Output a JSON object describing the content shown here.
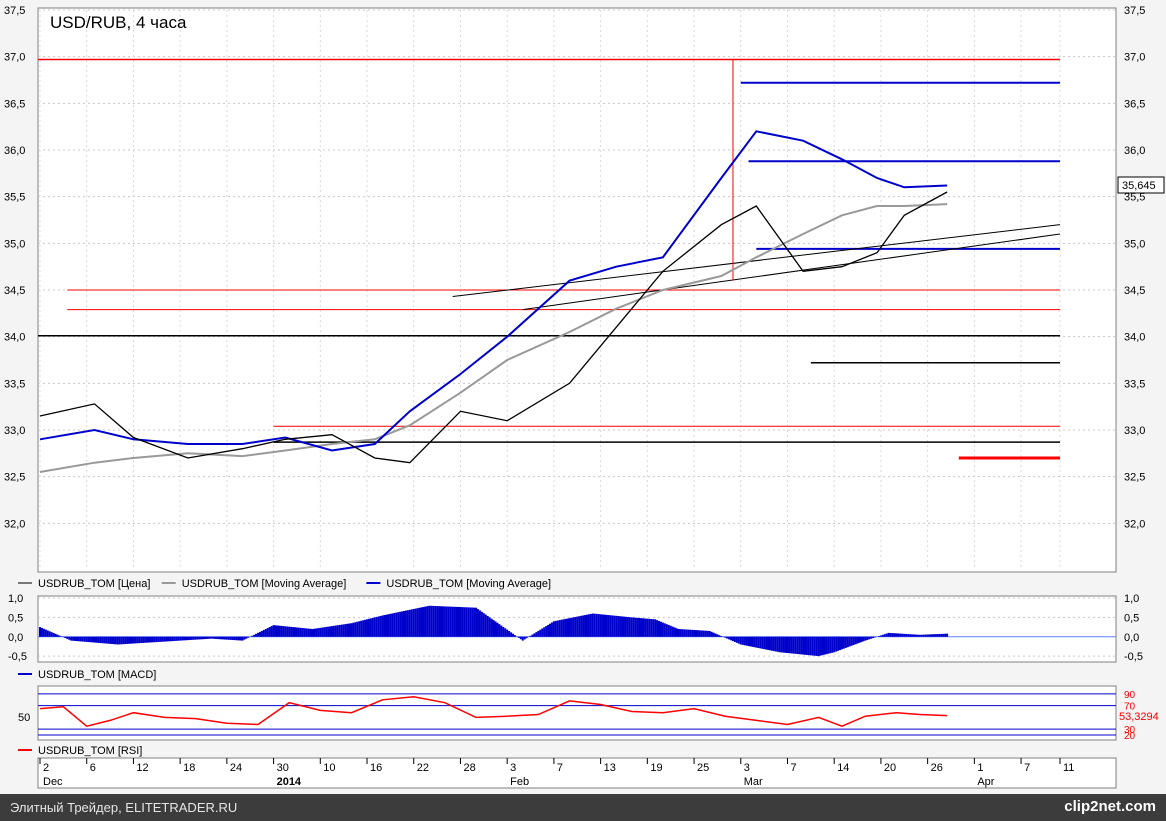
{
  "title": "USD/RUB, 4 часа",
  "colors": {
    "price": "#000000",
    "ma_fast": "#0000cc",
    "ma_slow": "#999999",
    "hline_red": "#ff0000",
    "hline_black": "#000000",
    "hline_blue": "#0000cc",
    "macd": "#0000cc",
    "rsi": "#ff0000"
  },
  "chart_data": [
    {
      "type": "line",
      "name": "main",
      "title": "USD/RUB, 4 часа",
      "ylim": [
        31.5,
        37.5
      ],
      "y_ticks": [
        "37,5",
        "37,0",
        "36,5",
        "36,0",
        "35,5",
        "35,0",
        "34,5",
        "34,0",
        "33,5",
        "33,0",
        "32,5",
        "32,0"
      ],
      "y_tick_values": [
        37.5,
        37.0,
        36.5,
        36.0,
        35.5,
        35.0,
        34.5,
        34.0,
        33.5,
        33.0,
        32.5,
        32.0
      ],
      "x": [
        0,
        14,
        24,
        38,
        52,
        63,
        75,
        86,
        95,
        108,
        120,
        136,
        148,
        160,
        175,
        184,
        196,
        206,
        215,
        222,
        233
      ],
      "price": [
        33.15,
        33.28,
        32.92,
        32.7,
        32.8,
        32.9,
        32.95,
        32.7,
        32.65,
        33.2,
        33.1,
        33.5,
        34.1,
        34.7,
        35.2,
        35.4,
        34.7,
        34.75,
        34.9,
        35.3,
        35.55
      ],
      "ma_slow": [
        32.55,
        32.65,
        32.7,
        32.75,
        32.72,
        32.78,
        32.85,
        32.9,
        33.05,
        33.4,
        33.75,
        34.05,
        34.3,
        34.5,
        34.65,
        34.85,
        35.1,
        35.3,
        35.4,
        35.4,
        35.42
      ],
      "ma_fast": [
        32.9,
        33.0,
        32.9,
        32.85,
        32.85,
        32.92,
        32.78,
        32.85,
        33.2,
        33.6,
        34.0,
        34.6,
        34.75,
        34.85,
        35.7,
        36.2,
        36.1,
        35.9,
        35.7,
        35.6,
        35.62
      ],
      "last_value": "35,645",
      "legend": [
        "USDRUB_TOM [Цена]",
        "USDRUB_TOM [Moving Average]",
        "USDRUB_TOM [Moving Average]"
      ],
      "legend_colors": [
        "#777777",
        "#999999",
        "#0000cc"
      ]
    },
    {
      "type": "bar",
      "name": "macd",
      "ylim": [
        -0.6,
        1.0
      ],
      "y_ticks": [
        "1,0",
        "0,5",
        "0,0",
        "-0,5"
      ],
      "y_tick_values": [
        1.0,
        0.5,
        0.0,
        -0.5
      ],
      "x": [
        0,
        8,
        14,
        20,
        28,
        36,
        44,
        52,
        60,
        70,
        80,
        88,
        100,
        112,
        124,
        132,
        142,
        152,
        158,
        164,
        172,
        180,
        190,
        200,
        204,
        212,
        218,
        226,
        233
      ],
      "values": [
        0.25,
        -0.1,
        -0.15,
        -0.2,
        -0.15,
        -0.1,
        -0.05,
        -0.1,
        0.3,
        0.2,
        0.35,
        0.55,
        0.8,
        0.75,
        -0.1,
        0.4,
        0.6,
        0.5,
        0.45,
        0.2,
        0.15,
        -0.2,
        -0.4,
        -0.5,
        -0.4,
        -0.1,
        0.1,
        0.05,
        0.08
      ],
      "legend": [
        "USDRUB_TOM [MACD]"
      ]
    },
    {
      "type": "line",
      "name": "rsi",
      "ylim": [
        15,
        100
      ],
      "y_ticks": [
        "90",
        "70",
        "30",
        "20"
      ],
      "y_tick_values": [
        90,
        70,
        30,
        20
      ],
      "left_tick": "50",
      "last_value": "53,3294",
      "x": [
        0,
        6,
        12,
        18,
        24,
        32,
        40,
        48,
        56,
        64,
        72,
        80,
        88,
        96,
        104,
        112,
        120,
        128,
        136,
        144,
        152,
        160,
        168,
        176,
        184,
        192,
        200,
        206,
        212,
        220,
        226,
        233
      ],
      "values": [
        65,
        68,
        35,
        45,
        58,
        50,
        48,
        40,
        38,
        75,
        62,
        58,
        80,
        85,
        75,
        50,
        52,
        55,
        78,
        72,
        60,
        58,
        65,
        52,
        45,
        38,
        50,
        35,
        52,
        58,
        55,
        53
      ],
      "legend": [
        "USDRUB_TOM [RSI]"
      ]
    }
  ],
  "x_axis": {
    "day_labels": [
      "2",
      "6",
      "12",
      "18",
      "24",
      "30",
      "10",
      "16",
      "22",
      "28",
      "3",
      "7",
      "13",
      "19",
      "25",
      "3",
      "7",
      "14",
      "20",
      "26",
      "1",
      "7",
      "11"
    ],
    "day_x": [
      0,
      12,
      24,
      36,
      48,
      60,
      72,
      84,
      96,
      108,
      120,
      132,
      144,
      156,
      168,
      180,
      192,
      204,
      216,
      228,
      240,
      252,
      262
    ],
    "month_labels": [
      "Dec",
      "2014",
      "Feb",
      "Mar",
      "Apr"
    ],
    "month_x": [
      0,
      60,
      120,
      180,
      240
    ]
  },
  "footer": {
    "left": "Элитный Трейдер, ELITETRADER.RU",
    "logo": "clip2net.com"
  }
}
